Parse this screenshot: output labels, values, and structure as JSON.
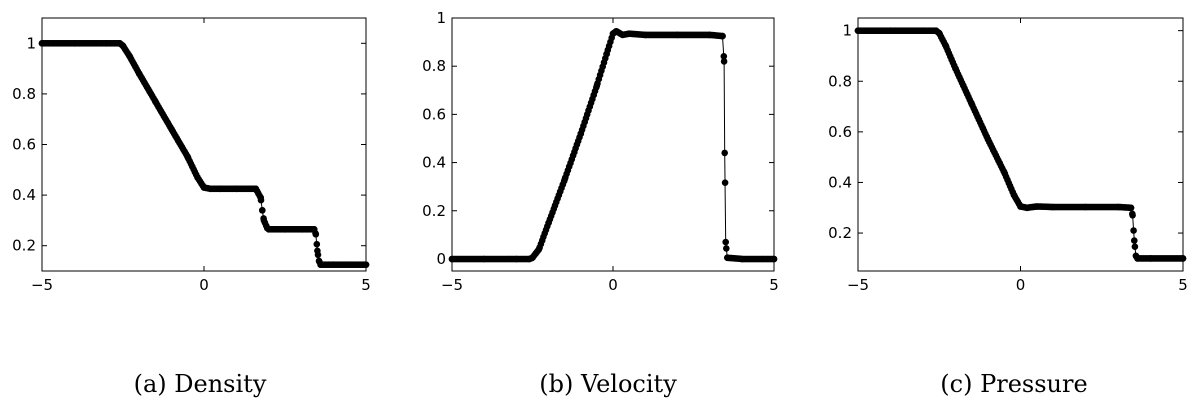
{
  "figure": {
    "captions": [
      "(a) Density",
      "(b) Velocity",
      "(c) Pressure"
    ]
  },
  "chart_data": [
    {
      "type": "scatter",
      "title": "",
      "caption": "(a) Density",
      "xlabel": "",
      "ylabel": "",
      "xlim": [
        -5,
        5
      ],
      "ylim": [
        0.1,
        1.1
      ],
      "xticks": [
        -5,
        0,
        5
      ],
      "yticks": [
        0.2,
        0.4,
        0.6,
        0.8,
        1
      ],
      "ytick_labels": [
        "0.2",
        "0.4",
        "0.6",
        "0.8",
        "1"
      ],
      "grid": false,
      "series": [
        {
          "points": [
            [
              -5.0,
              1.0
            ],
            [
              -4.0,
              1.0
            ],
            [
              -3.0,
              1.0
            ],
            [
              -2.6,
              1.0
            ],
            [
              -2.5,
              0.99
            ],
            [
              -2.3,
              0.95
            ],
            [
              -2.0,
              0.88
            ],
            [
              -1.5,
              0.77
            ],
            [
              -1.0,
              0.66
            ],
            [
              -0.5,
              0.55
            ],
            [
              -0.2,
              0.47
            ],
            [
              0.0,
              0.43
            ],
            [
              0.2,
              0.425
            ],
            [
              0.5,
              0.425
            ],
            [
              1.0,
              0.425
            ],
            [
              1.6,
              0.425
            ],
            [
              1.75,
              0.39
            ],
            [
              1.8,
              0.34
            ],
            [
              1.85,
              0.3
            ],
            [
              1.95,
              0.27
            ],
            [
              2.0,
              0.265
            ],
            [
              2.5,
              0.265
            ],
            [
              3.0,
              0.265
            ],
            [
              3.4,
              0.265
            ],
            [
              3.45,
              0.245
            ],
            [
              3.5,
              0.18
            ],
            [
              3.55,
              0.14
            ],
            [
              3.6,
              0.125
            ],
            [
              4.0,
              0.125
            ],
            [
              5.0,
              0.125
            ]
          ]
        }
      ]
    },
    {
      "type": "scatter",
      "title": "",
      "caption": "(b) Velocity",
      "xlabel": "",
      "ylabel": "",
      "xlim": [
        -5,
        5
      ],
      "ylim": [
        -0.05,
        1.0
      ],
      "xticks": [
        -5,
        0,
        5
      ],
      "yticks": [
        0,
        0.2,
        0.4,
        0.6,
        0.8,
        1
      ],
      "ytick_labels": [
        "0",
        "0.2",
        "0.4",
        "0.6",
        "0.8",
        "1"
      ],
      "grid": false,
      "series": [
        {
          "points": [
            [
              -5.0,
              0.0
            ],
            [
              -4.0,
              0.0
            ],
            [
              -3.0,
              0.0
            ],
            [
              -2.6,
              0.0
            ],
            [
              -2.5,
              0.005
            ],
            [
              -2.3,
              0.04
            ],
            [
              -2.0,
              0.15
            ],
            [
              -1.5,
              0.33
            ],
            [
              -1.0,
              0.52
            ],
            [
              -0.5,
              0.72
            ],
            [
              -0.2,
              0.85
            ],
            [
              0.0,
              0.935
            ],
            [
              0.1,
              0.945
            ],
            [
              0.3,
              0.93
            ],
            [
              0.5,
              0.935
            ],
            [
              1.0,
              0.93
            ],
            [
              2.0,
              0.93
            ],
            [
              3.0,
              0.93
            ],
            [
              3.4,
              0.925
            ],
            [
              3.45,
              0.82
            ],
            [
              3.47,
              0.44
            ],
            [
              3.5,
              0.07
            ],
            [
              3.55,
              0.005
            ],
            [
              4.0,
              0.0
            ],
            [
              5.0,
              0.0
            ]
          ]
        }
      ]
    },
    {
      "type": "scatter",
      "title": "",
      "caption": "(c) Pressure",
      "xlabel": "",
      "ylabel": "",
      "xlim": [
        -5,
        5
      ],
      "ylim": [
        0.05,
        1.05
      ],
      "xticks": [
        -5,
        0,
        5
      ],
      "yticks": [
        0.2,
        0.4,
        0.6,
        0.8,
        1
      ],
      "ytick_labels": [
        "0.2",
        "0.4",
        "0.6",
        "0.8",
        "1"
      ],
      "grid": false,
      "series": [
        {
          "points": [
            [
              -5.0,
              1.0
            ],
            [
              -4.0,
              1.0
            ],
            [
              -3.0,
              1.0
            ],
            [
              -2.6,
              1.0
            ],
            [
              -2.5,
              0.99
            ],
            [
              -2.3,
              0.94
            ],
            [
              -2.0,
              0.85
            ],
            [
              -1.5,
              0.71
            ],
            [
              -1.0,
              0.57
            ],
            [
              -0.5,
              0.44
            ],
            [
              -0.2,
              0.35
            ],
            [
              0.0,
              0.305
            ],
            [
              0.2,
              0.3
            ],
            [
              0.5,
              0.305
            ],
            [
              1.0,
              0.303
            ],
            [
              2.0,
              0.303
            ],
            [
              3.0,
              0.303
            ],
            [
              3.4,
              0.3
            ],
            [
              3.45,
              0.27
            ],
            [
              3.5,
              0.17
            ],
            [
              3.55,
              0.11
            ],
            [
              3.6,
              0.1
            ],
            [
              4.0,
              0.1
            ],
            [
              5.0,
              0.1
            ]
          ]
        }
      ]
    }
  ]
}
